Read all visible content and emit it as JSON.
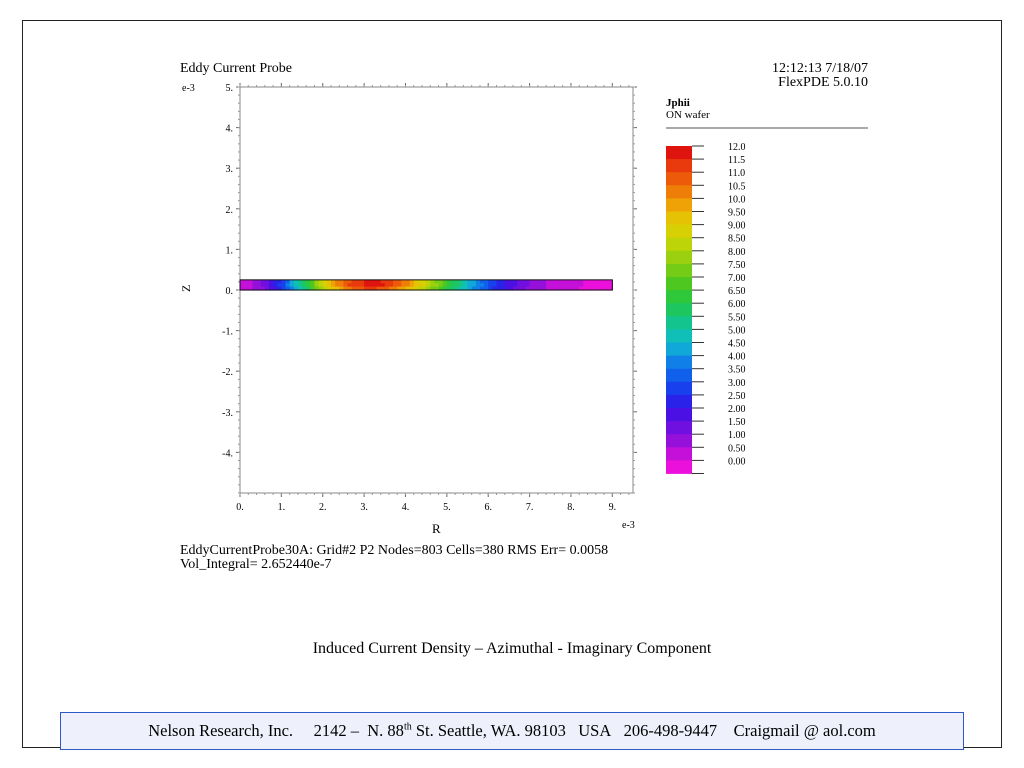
{
  "slide": {
    "caption": "Induced Current Density – Azimuthal - Imaginary Component",
    "footer": {
      "company": "Nelson Research, Inc.",
      "address_pre": "2142 –  N. 88",
      "address_sup": "th",
      "address_post": " St. Seattle, WA. 98103   USA",
      "phone": "206-498-9447",
      "email": "Craigmail @ aol.com"
    }
  },
  "plot": {
    "title": "Eddy Current Probe",
    "timestamp": "12:12:13 7/18/07",
    "software": "FlexPDE 5.0.10",
    "z_exponent": "e-3",
    "r_exponent": "e-3",
    "stats_line1": "EddyCurrentProbe30A:  Grid#2  P2  Nodes=803  Cells=380  RMS Err= 0.0058",
    "stats_line2": "Vol_Integral=  2.652440e-7",
    "legend_title": "Jphii",
    "legend_subtitle": "ON wafer",
    "legend_values": [
      "12.0",
      "11.5",
      "11.0",
      "10.5",
      "10.0",
      "9.50",
      "9.00",
      "8.50",
      "8.00",
      "7.50",
      "7.00",
      "6.50",
      "6.00",
      "5.50",
      "5.00",
      "4.50",
      "4.00",
      "3.50",
      "3.00",
      "2.50",
      "2.00",
      "1.50",
      "1.00",
      "0.50",
      "0.00"
    ],
    "legend_colors": [
      "#e0140f",
      "#e83a0c",
      "#ec5a0a",
      "#ee7e08",
      "#eea206",
      "#e6c204",
      "#d6d004",
      "#bcd408",
      "#9ad00e",
      "#74cc16",
      "#4ec820",
      "#2ec83a",
      "#1ec660",
      "#14c48e",
      "#10c0b8",
      "#10a8d8",
      "#1080e8",
      "#1060ec",
      "#1840ec",
      "#2a22e8",
      "#4a10e4",
      "#7010e0",
      "#9610dc",
      "#c410d8",
      "#ec10dc"
    ]
  },
  "chart_data": {
    "type": "heatmap",
    "title": "Eddy Current Probe",
    "xlabel": "R",
    "ylabel": "Z",
    "x_unit_exponent": "e-3",
    "y_unit_exponent": "e-3",
    "xlim": [
      0,
      9.5
    ],
    "ylim": [
      -5,
      5
    ],
    "x_ticks": [
      "0.",
      "1.",
      "2.",
      "3.",
      "4.",
      "5.",
      "6.",
      "7.",
      "8.",
      "9."
    ],
    "y_ticks": [
      "5.",
      "4.",
      "3.",
      "2.",
      "1.",
      "0.",
      "-1.",
      "-2.",
      "-3.",
      "-4."
    ],
    "wafer_r_range": [
      0,
      9
    ],
    "wafer_z_range": [
      0,
      0.25
    ],
    "peak_r": 3.0,
    "peak_value": 12.0,
    "color_scale_min": 0.0,
    "color_scale_max": 12.0,
    "legend_placement": "right"
  }
}
